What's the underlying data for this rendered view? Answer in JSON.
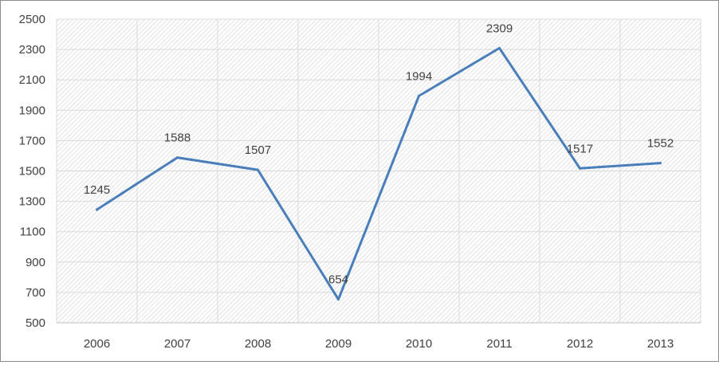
{
  "chart_data": {
    "type": "line",
    "title": "",
    "xlabel": "",
    "ylabel": "",
    "x": [
      "2006",
      "2007",
      "2008",
      "2009",
      "2010",
      "2011",
      "2012",
      "2013"
    ],
    "values": [
      1245,
      1588,
      1507,
      654,
      1994,
      2309,
      1517,
      1552
    ],
    "data_labels": [
      "1245",
      "1588",
      "1507",
      "654",
      "1994",
      "2309",
      "1517",
      "1552"
    ],
    "ylim": [
      500,
      2500
    ],
    "yticks": [
      "500",
      "700",
      "900",
      "1100",
      "1300",
      "1500",
      "1700",
      "1900",
      "2100",
      "2300",
      "2500"
    ],
    "grid": true,
    "legend": "none",
    "colors": {
      "line": "#4a7ebb",
      "grid": "#d9d9d9",
      "text": "#404040",
      "plot_pattern": "#c8c8c8"
    }
  }
}
